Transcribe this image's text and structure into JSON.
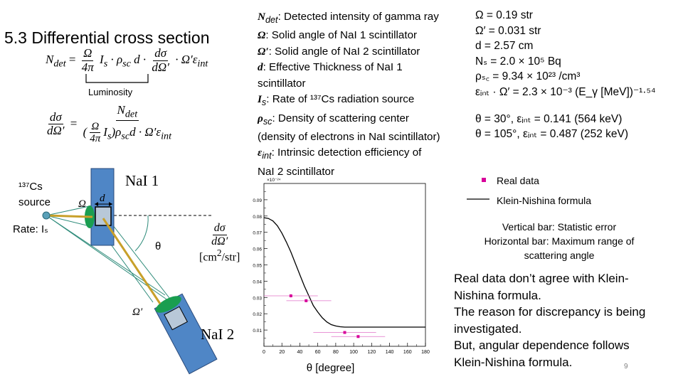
{
  "slide": {
    "title": "5.3 Differential cross section",
    "page_number": "9"
  },
  "equations": {
    "eq1_lhs": "N",
    "eq1_lhs_sub": "det",
    "eq1_frac_num": "Ω",
    "eq1_frac_den": "4π",
    "eq1_mid": "I",
    "eq1_mid_sub": "s",
    "eq1_rho": "· ρ",
    "eq1_rho_sub": "sc",
    "eq1_d": "d ·",
    "eq1_dsig_num": "dσ",
    "eq1_dsig_den": "dΩ′",
    "eq1_tail": "· Ω′ε",
    "eq1_tail_sub": "int",
    "luminosity_label": "Luminosity",
    "eq2_lhs_num": "dσ",
    "eq2_lhs_den": "dΩ′",
    "eq2_num": "N",
    "eq2_num_sub": "det",
    "eq2_den": "ρ",
    "eq2_den_sub": "sc",
    "eq2_den_tail": "d · Ω′ε",
    "eq2_den_tail_sub": "int"
  },
  "definitions": [
    {
      "sym": "N",
      "sub": "det",
      "text": ": Detected intensity of gamma ray"
    },
    {
      "sym": "Ω",
      "sub": "",
      "text": ": Solid angle of NaI 1 scintillator"
    },
    {
      "sym": "Ω′",
      "sub": "",
      "text": ": Solid angle of NaI 2 scintillator"
    },
    {
      "sym": "d",
      "sub": "",
      "text": ": Effective Thickness of NaI 1"
    },
    {
      "sym": "",
      "sub": "",
      "text": "scintillator"
    },
    {
      "sym": "I",
      "sub": "s",
      "text": ": Rate of ¹³⁷Cs radiation source"
    },
    {
      "sym": "ρ",
      "sub": "sc",
      "text": ": Density of scattering center"
    },
    {
      "sym": "",
      "sub": "",
      "text": "(density of electrons in NaI scintillator)"
    },
    {
      "sym": "ε",
      "sub": "int",
      "text": ": Intrinsic detection efficiency of"
    },
    {
      "sym": "",
      "sub": "",
      "text": "NaI 2 scintillator"
    }
  ],
  "parameters": [
    "Ω = 0.19 str",
    "Ω′ = 0.031 str",
    "d = 2.57 cm",
    "Nₛ = 2.0 × 10⁵ Bq",
    "ρₛ꜀ = 9.34 × 10²³ /cm³",
    "εᵢₙₜ · Ω′ = 2.3 × 10⁻³ (E_γ [MeV])⁻¹·⁵⁴",
    "θ = 30°,  εᵢₙₜ = 0.141 (564 keV)",
    "θ = 105°,  εᵢₙₜ = 0.487 (252 keV)"
  ],
  "diagram": {
    "source_label": "¹³⁷Cs",
    "source_word": "source",
    "rate_label": "Rate: Iₛ",
    "omega_label": "Ω",
    "d_label": "d",
    "theta_label": "θ",
    "omega_prime_label": "Ω′",
    "nai1_label": "NaI 1",
    "nai2_label": "NaI 2"
  },
  "legend": {
    "real_data": "Real data",
    "kn_formula": "Klein-Nishina formula",
    "note_line1": "Vertical bar: Statistic error",
    "note_line2": "Horizontal bar: Maximum range of",
    "note_line3": "scattering angle"
  },
  "conclusion": [
    "Real data don’t agree with Klein-",
    "Nishina formula.",
    "The reason for discrepancy is being",
    "investigated.",
    "But, angular dependence follows",
    "Klein-Nishina formula."
  ],
  "colors": {
    "nai_blue": "#4f86c6",
    "pmt_green": "#1a9e50",
    "beam_gold": "#c8a02a",
    "cone_teal": "#2e8b7a",
    "marker_magenta": "#d8009a",
    "error_magenta": "#e070c8",
    "page_grey": "#7f7f7f"
  },
  "chart_data": {
    "type": "line",
    "title": "",
    "ylabel": "dσ/dΩ′ [cm²/str]",
    "xlabel": "θ [degree]",
    "y_exponent_label": "×10⁻²⁴",
    "xlim": [
      0,
      180
    ],
    "ylim": [
      0,
      0.1
    ],
    "x_ticks": [
      0,
      20,
      40,
      60,
      80,
      100,
      120,
      140,
      160,
      180
    ],
    "y_ticks": [
      0.01,
      0.02,
      0.03,
      0.04,
      0.05,
      0.06,
      0.07,
      0.08,
      0.09
    ],
    "series": [
      {
        "name": "Klein-Nishina formula",
        "kind": "line",
        "x": [
          0,
          5,
          10,
          15,
          20,
          25,
          30,
          35,
          40,
          45,
          50,
          55,
          60,
          65,
          70,
          75,
          80,
          85,
          90,
          95,
          100,
          110,
          120,
          140,
          160,
          180
        ],
        "y": [
          0.079,
          0.0785,
          0.077,
          0.074,
          0.0695,
          0.064,
          0.058,
          0.051,
          0.044,
          0.037,
          0.031,
          0.025,
          0.021,
          0.0175,
          0.015,
          0.0133,
          0.0125,
          0.012,
          0.0118,
          0.0118,
          0.0118,
          0.0118,
          0.0118,
          0.0118,
          0.0118,
          0.0118
        ]
      },
      {
        "name": "Real data",
        "kind": "points",
        "points": [
          {
            "x": 30,
            "y": 0.031,
            "xerr": [
              0,
              60
            ],
            "yerr": 0.001
          },
          {
            "x": 47,
            "y": 0.028,
            "xerr": [
              25,
              75
            ],
            "yerr": 0.001
          },
          {
            "x": 90,
            "y": 0.0085,
            "xerr": [
              55,
              125
            ],
            "yerr": 0.0005
          },
          {
            "x": 105,
            "y": 0.006,
            "xerr": [
              75,
              135
            ],
            "yerr": 0.0005
          }
        ]
      }
    ]
  }
}
